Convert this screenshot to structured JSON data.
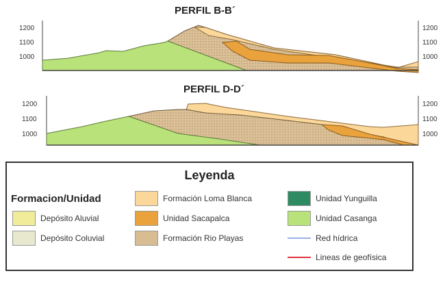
{
  "profiles": [
    {
      "title": "PERFIL B-B´",
      "ticks": [
        "1200",
        "1100",
        "1000"
      ]
    },
    {
      "title": "PERFIL D-D´",
      "ticks": [
        "1200",
        "1100",
        "1000"
      ]
    }
  ],
  "legend": {
    "title": "Leyenda",
    "heading": "Formacion/Unidad",
    "items": [
      {
        "label": "Depósito Aluvial",
        "color": "#f0ec9a"
      },
      {
        "label": "Depósito Coluvial",
        "color": "#e8e8cf"
      },
      {
        "label": "Formación Loma Blanca",
        "color": "#fcd79a"
      },
      {
        "label": "Unidad Sacapalca",
        "color": "#e9a23c"
      },
      {
        "label": "Formación Rio Playas",
        "color": "#d9bd92"
      },
      {
        "label": "Unidad Yunguilla",
        "color": "#2e8a63"
      },
      {
        "label": "Unidad Casanga",
        "color": "#b9e27a"
      },
      {
        "label": "Red hídrica",
        "color": "#9ab0e8"
      },
      {
        "label": "Lineas de geofísica",
        "color": "#e0303a"
      }
    ]
  }
}
